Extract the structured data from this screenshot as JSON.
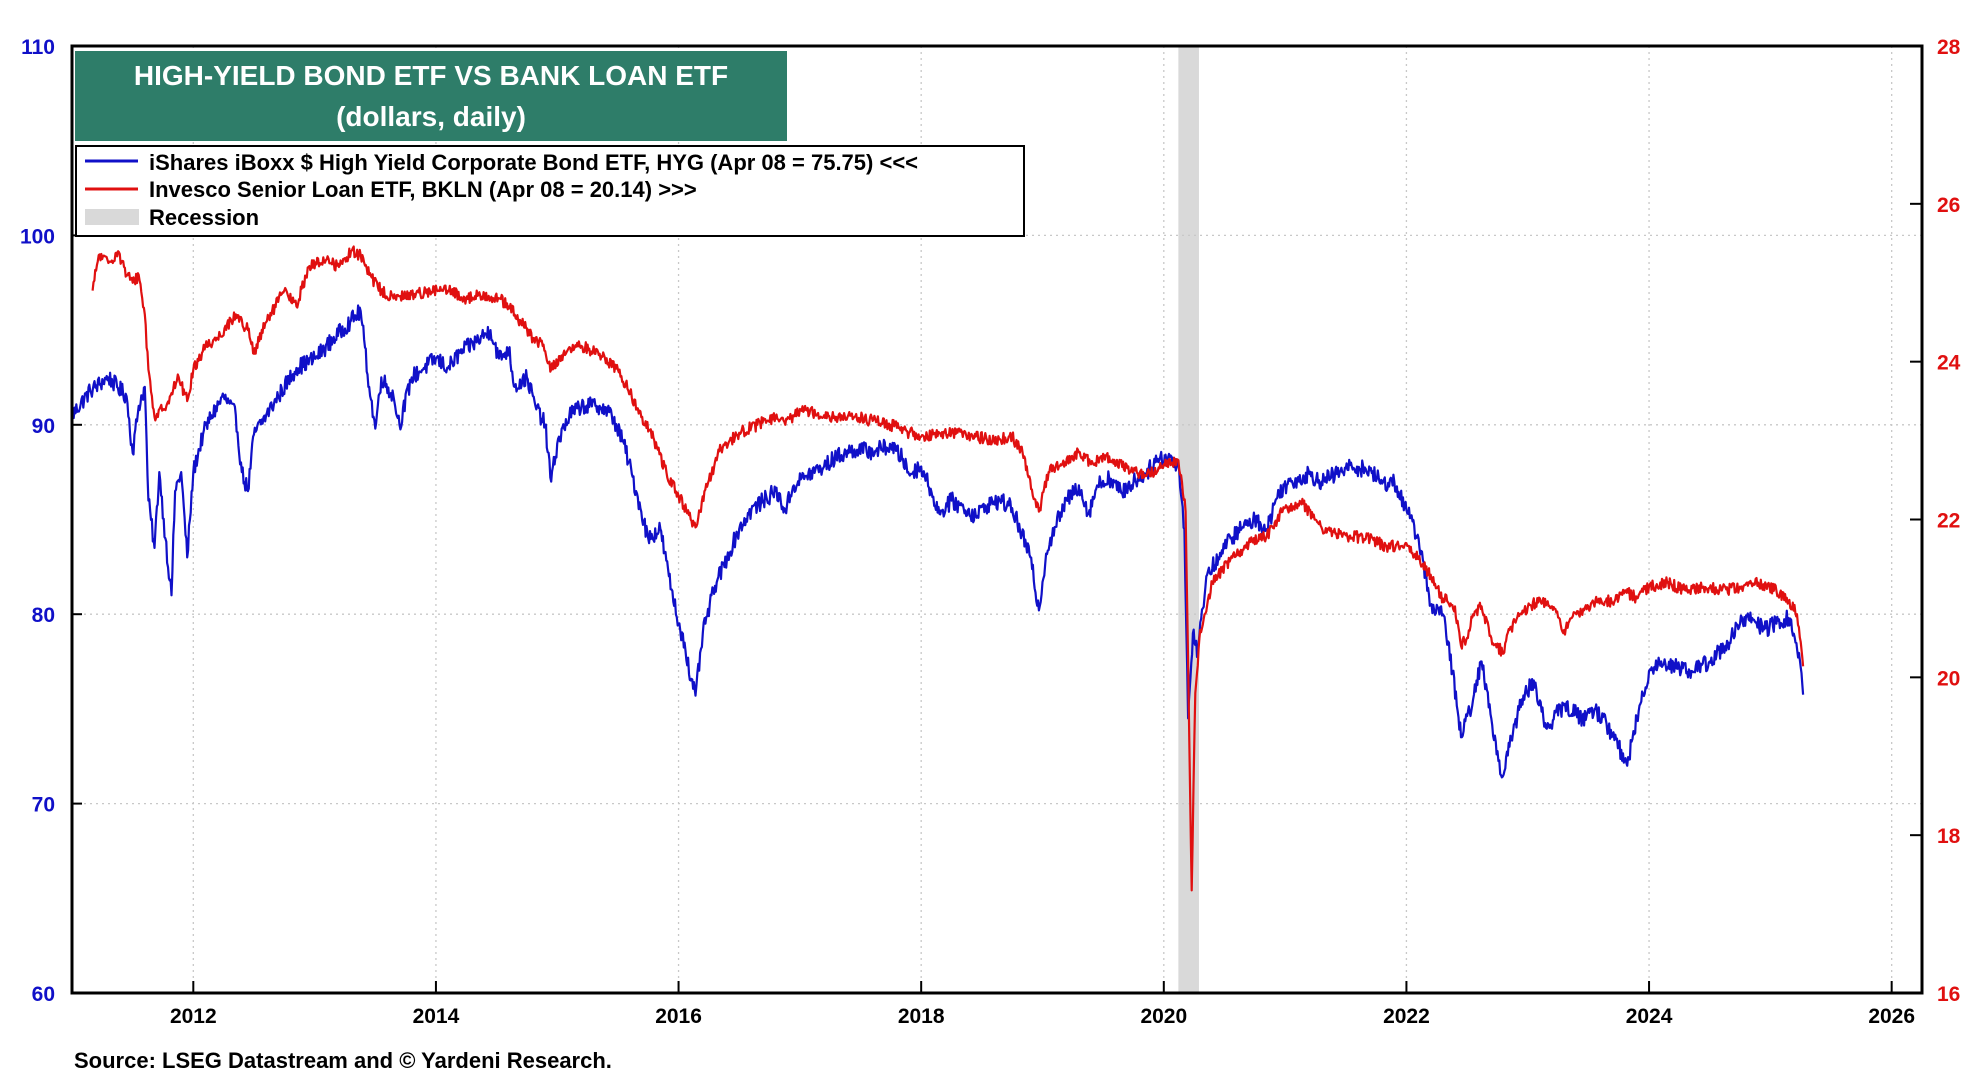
{
  "chart_data": {
    "type": "line",
    "title": "HIGH-YIELD BOND ETF VS BANK LOAN ETF",
    "subtitle": "(dollars, daily)",
    "source": "Source: LSEG Datastream and © Yardeni Research.",
    "xlim": [
      2011.0,
      2026.25
    ],
    "x_ticks": [
      "2012",
      "2014",
      "2016",
      "2018",
      "2020",
      "2022",
      "2024",
      "2026"
    ],
    "y_left": {
      "ylim": [
        60,
        110
      ],
      "ticks": [
        "60",
        "70",
        "80",
        "90",
        "100",
        "110"
      ],
      "color": "#1010c8"
    },
    "y_right": {
      "ylim": [
        16,
        28
      ],
      "ticks": [
        "16",
        "18",
        "20",
        "22",
        "24",
        "26",
        "28"
      ],
      "color": "#e01010"
    },
    "grid": true,
    "legend": {
      "placement": "top-left",
      "items": [
        "iShares iBoxx $ High Yield Corporate Bond ETF, HYG (Apr 08 = 75.75) <<<",
        "Invesco Senior Loan ETF, BKLN (Apr 08 = 20.14) >>>",
        "Recession"
      ]
    },
    "recession": {
      "start": 2020.12,
      "end": 2020.29,
      "color": "#d9d9d9"
    },
    "series": [
      {
        "name": "iShares iBoxx $ High Yield Corporate Bond ETF, HYG (Apr 08 = 75.75) <<<",
        "axis": "left",
        "color": "#1010c8",
        "points": [
          [
            2011.0,
            90.5
          ],
          [
            2011.15,
            91.8
          ],
          [
            2011.3,
            92.5
          ],
          [
            2011.45,
            91.5
          ],
          [
            2011.5,
            88.5
          ],
          [
            2011.55,
            91.0
          ],
          [
            2011.6,
            92.0
          ],
          [
            2011.63,
            86.0
          ],
          [
            2011.68,
            83.5
          ],
          [
            2011.72,
            87.5
          ],
          [
            2011.77,
            84.0
          ],
          [
            2011.82,
            81.0
          ],
          [
            2011.85,
            86.5
          ],
          [
            2011.9,
            87.5
          ],
          [
            2011.95,
            83.0
          ],
          [
            2012.0,
            87.5
          ],
          [
            2012.08,
            89.5
          ],
          [
            2012.15,
            90.5
          ],
          [
            2012.25,
            91.5
          ],
          [
            2012.35,
            90.5
          ],
          [
            2012.4,
            87.5
          ],
          [
            2012.45,
            86.5
          ],
          [
            2012.5,
            89.5
          ],
          [
            2012.6,
            90.5
          ],
          [
            2012.7,
            91.5
          ],
          [
            2012.85,
            93.0
          ],
          [
            2013.0,
            93.5
          ],
          [
            2013.15,
            94.5
          ],
          [
            2013.3,
            95.5
          ],
          [
            2013.38,
            96.0
          ],
          [
            2013.45,
            92.0
          ],
          [
            2013.5,
            89.8
          ],
          [
            2013.55,
            92.5
          ],
          [
            2013.65,
            91.5
          ],
          [
            2013.7,
            90.0
          ],
          [
            2013.8,
            92.5
          ],
          [
            2013.9,
            93.0
          ],
          [
            2014.0,
            93.5
          ],
          [
            2014.1,
            93.0
          ],
          [
            2014.2,
            93.8
          ],
          [
            2014.35,
            94.5
          ],
          [
            2014.45,
            95.0
          ],
          [
            2014.52,
            93.5
          ],
          [
            2014.6,
            94.0
          ],
          [
            2014.65,
            92.0
          ],
          [
            2014.75,
            92.5
          ],
          [
            2014.82,
            91.0
          ],
          [
            2014.9,
            90.0
          ],
          [
            2014.95,
            87.0
          ],
          [
            2015.0,
            89.0
          ],
          [
            2015.1,
            90.5
          ],
          [
            2015.2,
            91.0
          ],
          [
            2015.35,
            91.0
          ],
          [
            2015.45,
            90.5
          ],
          [
            2015.55,
            89.0
          ],
          [
            2015.65,
            86.5
          ],
          [
            2015.75,
            84.0
          ],
          [
            2015.85,
            84.5
          ],
          [
            2015.92,
            82.0
          ],
          [
            2016.0,
            79.5
          ],
          [
            2016.05,
            78.5
          ],
          [
            2016.1,
            76.5
          ],
          [
            2016.14,
            75.7
          ],
          [
            2016.2,
            79.0
          ],
          [
            2016.3,
            81.5
          ],
          [
            2016.4,
            83.0
          ],
          [
            2016.5,
            84.5
          ],
          [
            2016.6,
            85.5
          ],
          [
            2016.7,
            86.0
          ],
          [
            2016.8,
            86.5
          ],
          [
            2016.88,
            85.5
          ],
          [
            2016.95,
            86.8
          ],
          [
            2017.05,
            87.3
          ],
          [
            2017.2,
            87.8
          ],
          [
            2017.3,
            88.3
          ],
          [
            2017.45,
            88.7
          ],
          [
            2017.6,
            88.6
          ],
          [
            2017.75,
            88.9
          ],
          [
            2017.85,
            88.2
          ],
          [
            2017.9,
            87.4
          ],
          [
            2018.0,
            87.8
          ],
          [
            2018.1,
            86.2
          ],
          [
            2018.15,
            85.3
          ],
          [
            2018.25,
            86.0
          ],
          [
            2018.35,
            85.6
          ],
          [
            2018.45,
            85.2
          ],
          [
            2018.55,
            85.8
          ],
          [
            2018.65,
            86.0
          ],
          [
            2018.75,
            85.6
          ],
          [
            2018.83,
            84.2
          ],
          [
            2018.9,
            83.0
          ],
          [
            2018.97,
            80.2
          ],
          [
            2019.03,
            83.2
          ],
          [
            2019.1,
            84.6
          ],
          [
            2019.2,
            86.0
          ],
          [
            2019.3,
            86.8
          ],
          [
            2019.38,
            85.3
          ],
          [
            2019.45,
            86.8
          ],
          [
            2019.55,
            87.2
          ],
          [
            2019.65,
            86.4
          ],
          [
            2019.75,
            87.0
          ],
          [
            2019.85,
            87.4
          ],
          [
            2019.95,
            88.2
          ],
          [
            2020.05,
            88.3
          ],
          [
            2020.12,
            87.9
          ],
          [
            2020.17,
            84.5
          ],
          [
            2020.2,
            74.5
          ],
          [
            2020.24,
            79.0
          ],
          [
            2020.28,
            78.0
          ],
          [
            2020.35,
            82.0
          ],
          [
            2020.45,
            83.0
          ],
          [
            2020.55,
            84.0
          ],
          [
            2020.65,
            84.6
          ],
          [
            2020.75,
            85.0
          ],
          [
            2020.85,
            84.5
          ],
          [
            2020.95,
            86.5
          ],
          [
            2021.05,
            87.0
          ],
          [
            2021.2,
            87.4
          ],
          [
            2021.3,
            87.0
          ],
          [
            2021.45,
            87.5
          ],
          [
            2021.55,
            87.8
          ],
          [
            2021.7,
            87.6
          ],
          [
            2021.8,
            86.9
          ],
          [
            2021.9,
            87.0
          ],
          [
            2022.0,
            85.5
          ],
          [
            2022.1,
            84.0
          ],
          [
            2022.2,
            80.5
          ],
          [
            2022.3,
            80.0
          ],
          [
            2022.38,
            77.0
          ],
          [
            2022.45,
            73.5
          ],
          [
            2022.55,
            75.5
          ],
          [
            2022.62,
            77.5
          ],
          [
            2022.7,
            74.5
          ],
          [
            2022.78,
            71.5
          ],
          [
            2022.85,
            73.0
          ],
          [
            2022.95,
            75.5
          ],
          [
            2023.05,
            76.5
          ],
          [
            2023.15,
            74.0
          ],
          [
            2023.3,
            75.2
          ],
          [
            2023.45,
            74.5
          ],
          [
            2023.55,
            75.0
          ],
          [
            2023.65,
            74.2
          ],
          [
            2023.75,
            73.0
          ],
          [
            2023.82,
            72.0
          ],
          [
            2023.9,
            74.5
          ],
          [
            2024.0,
            77.0
          ],
          [
            2024.1,
            77.5
          ],
          [
            2024.25,
            77.2
          ],
          [
            2024.35,
            77.0
          ],
          [
            2024.5,
            77.5
          ],
          [
            2024.65,
            78.5
          ],
          [
            2024.75,
            79.5
          ],
          [
            2024.85,
            79.8
          ],
          [
            2024.95,
            79.2
          ],
          [
            2025.05,
            79.5
          ],
          [
            2025.15,
            79.8
          ],
          [
            2025.2,
            78.8
          ],
          [
            2025.25,
            77.2
          ],
          [
            2025.27,
            75.75
          ]
        ]
      },
      {
        "name": "Invesco Senior Loan ETF, BKLN (Apr 08 = 20.14) >>>",
        "axis": "right",
        "color": "#e01010",
        "points": [
          [
            2011.17,
            24.9
          ],
          [
            2011.22,
            25.35
          ],
          [
            2011.3,
            25.25
          ],
          [
            2011.38,
            25.4
          ],
          [
            2011.45,
            25.1
          ],
          [
            2011.5,
            25.0
          ],
          [
            2011.55,
            25.1
          ],
          [
            2011.6,
            24.6
          ],
          [
            2011.63,
            23.9
          ],
          [
            2011.68,
            23.3
          ],
          [
            2011.75,
            23.4
          ],
          [
            2011.82,
            23.6
          ],
          [
            2011.88,
            23.8
          ],
          [
            2011.95,
            23.5
          ],
          [
            2012.0,
            23.9
          ],
          [
            2012.1,
            24.2
          ],
          [
            2012.2,
            24.3
          ],
          [
            2012.35,
            24.6
          ],
          [
            2012.45,
            24.4
          ],
          [
            2012.5,
            24.1
          ],
          [
            2012.6,
            24.5
          ],
          [
            2012.75,
            24.9
          ],
          [
            2012.85,
            24.7
          ],
          [
            2012.95,
            25.2
          ],
          [
            2013.1,
            25.3
          ],
          [
            2013.2,
            25.2
          ],
          [
            2013.3,
            25.4
          ],
          [
            2013.38,
            25.35
          ],
          [
            2013.45,
            25.1
          ],
          [
            2013.55,
            24.9
          ],
          [
            2013.65,
            24.8
          ],
          [
            2013.8,
            24.85
          ],
          [
            2013.95,
            24.9
          ],
          [
            2014.1,
            24.9
          ],
          [
            2014.25,
            24.8
          ],
          [
            2014.4,
            24.85
          ],
          [
            2014.52,
            24.8
          ],
          [
            2014.6,
            24.7
          ],
          [
            2014.7,
            24.5
          ],
          [
            2014.8,
            24.3
          ],
          [
            2014.88,
            24.2
          ],
          [
            2014.95,
            23.9
          ],
          [
            2015.05,
            24.1
          ],
          [
            2015.2,
            24.2
          ],
          [
            2015.35,
            24.1
          ],
          [
            2015.5,
            23.9
          ],
          [
            2015.6,
            23.6
          ],
          [
            2015.7,
            23.3
          ],
          [
            2015.8,
            23.0
          ],
          [
            2015.9,
            22.6
          ],
          [
            2016.0,
            22.3
          ],
          [
            2016.1,
            22.0
          ],
          [
            2016.14,
            21.9
          ],
          [
            2016.25,
            22.5
          ],
          [
            2016.35,
            22.9
          ],
          [
            2016.5,
            23.1
          ],
          [
            2016.65,
            23.2
          ],
          [
            2016.8,
            23.3
          ],
          [
            2016.88,
            23.2
          ],
          [
            2017.0,
            23.4
          ],
          [
            2017.15,
            23.35
          ],
          [
            2017.3,
            23.3
          ],
          [
            2017.45,
            23.3
          ],
          [
            2017.6,
            23.25
          ],
          [
            2017.75,
            23.2
          ],
          [
            2017.9,
            23.1
          ],
          [
            2018.0,
            23.05
          ],
          [
            2018.15,
            23.1
          ],
          [
            2018.3,
            23.1
          ],
          [
            2018.45,
            23.05
          ],
          [
            2018.6,
            23.0
          ],
          [
            2018.75,
            23.05
          ],
          [
            2018.85,
            22.8
          ],
          [
            2018.92,
            22.3
          ],
          [
            2018.97,
            22.1
          ],
          [
            2019.05,
            22.6
          ],
          [
            2019.15,
            22.7
          ],
          [
            2019.3,
            22.85
          ],
          [
            2019.4,
            22.7
          ],
          [
            2019.55,
            22.8
          ],
          [
            2019.7,
            22.65
          ],
          [
            2019.85,
            22.55
          ],
          [
            2020.0,
            22.7
          ],
          [
            2020.12,
            22.75
          ],
          [
            2020.18,
            22.1
          ],
          [
            2020.21,
            19.2
          ],
          [
            2020.23,
            17.3
          ],
          [
            2020.26,
            19.8
          ],
          [
            2020.3,
            20.6
          ],
          [
            2020.4,
            21.2
          ],
          [
            2020.55,
            21.5
          ],
          [
            2020.7,
            21.7
          ],
          [
            2020.85,
            21.8
          ],
          [
            2021.0,
            22.15
          ],
          [
            2021.15,
            22.2
          ],
          [
            2021.3,
            21.9
          ],
          [
            2021.5,
            21.8
          ],
          [
            2021.7,
            21.75
          ],
          [
            2021.85,
            21.65
          ],
          [
            2022.0,
            21.7
          ],
          [
            2022.1,
            21.5
          ],
          [
            2022.2,
            21.3
          ],
          [
            2022.3,
            21.0
          ],
          [
            2022.4,
            20.9
          ],
          [
            2022.45,
            20.4
          ],
          [
            2022.5,
            20.5
          ],
          [
            2022.55,
            20.8
          ],
          [
            2022.62,
            20.9
          ],
          [
            2022.7,
            20.5
          ],
          [
            2022.8,
            20.3
          ],
          [
            2022.85,
            20.6
          ],
          [
            2022.95,
            20.8
          ],
          [
            2023.1,
            21.0
          ],
          [
            2023.2,
            20.9
          ],
          [
            2023.3,
            20.6
          ],
          [
            2023.4,
            20.8
          ],
          [
            2023.5,
            20.9
          ],
          [
            2023.6,
            21.0
          ],
          [
            2023.7,
            20.95
          ],
          [
            2023.8,
            21.1
          ],
          [
            2023.9,
            21.0
          ],
          [
            2024.0,
            21.15
          ],
          [
            2024.15,
            21.2
          ],
          [
            2024.3,
            21.1
          ],
          [
            2024.45,
            21.15
          ],
          [
            2024.6,
            21.1
          ],
          [
            2024.75,
            21.15
          ],
          [
            2024.9,
            21.2
          ],
          [
            2025.05,
            21.1
          ],
          [
            2025.15,
            20.95
          ],
          [
            2025.22,
            20.8
          ],
          [
            2025.25,
            20.45
          ],
          [
            2025.27,
            20.14
          ]
        ]
      }
    ]
  }
}
